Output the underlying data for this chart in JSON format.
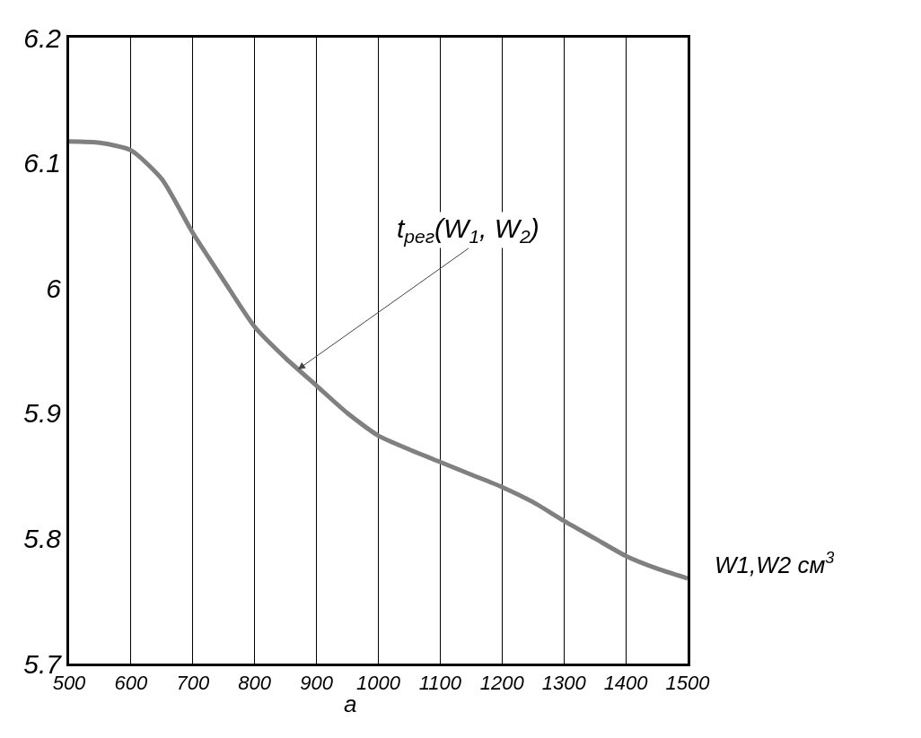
{
  "chart_data": {
    "type": "line",
    "xlabel": "W1,W2 см$^{3}$",
    "annotations": [
      "а",
      {
        "text": "t$_{рег}$(W$_{1}$, W$_{2}$)",
        "x": 870,
        "y": 5.935
      }
    ],
    "x": [
      500,
      550,
      600,
      650,
      700,
      750,
      800,
      850,
      900,
      950,
      1000,
      1050,
      1100,
      1150,
      1200,
      1250,
      1300,
      1350,
      1400,
      1450,
      1500
    ],
    "series": [
      {
        "color": "#808080",
        "values": [
          6.117,
          6.116,
          6.11,
          6.087,
          6.044,
          6.006,
          5.969,
          5.944,
          5.922,
          5.9,
          5.882,
          5.871,
          5.861,
          5.851,
          5.841,
          5.829,
          5.814,
          5.8,
          5.786,
          5.776,
          5.768
        ]
      }
    ],
    "xlim": [
      500,
      1500
    ],
    "xticks": [
      500,
      600,
      700,
      800,
      900,
      1000,
      1100,
      1200,
      1300,
      1400,
      1500
    ],
    "ylim": [
      5.7,
      6.2
    ],
    "yticks": [
      5.7,
      5.8,
      5.9,
      {
        "value": 6,
        "label": "6"
      },
      6.1,
      6.2
    ],
    "grid": "x",
    "marker": "none",
    "line_style": "solid"
  }
}
